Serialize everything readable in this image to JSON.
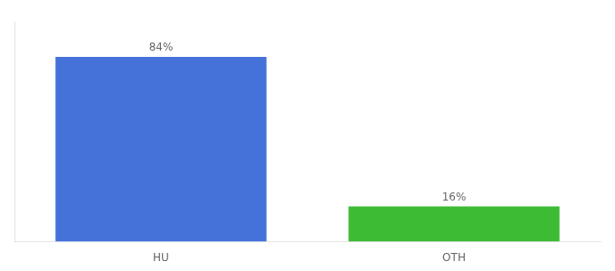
{
  "chart_data": {
    "type": "bar",
    "categories": [
      "HU",
      "OTH"
    ],
    "values": [
      84,
      16
    ],
    "value_labels": [
      "84%",
      "16%"
    ],
    "colors": [
      "#4472d9",
      "#3dbb35"
    ],
    "ylim": [
      0,
      100
    ],
    "grid": false,
    "tick_labels": "x",
    "data_labels": true
  }
}
